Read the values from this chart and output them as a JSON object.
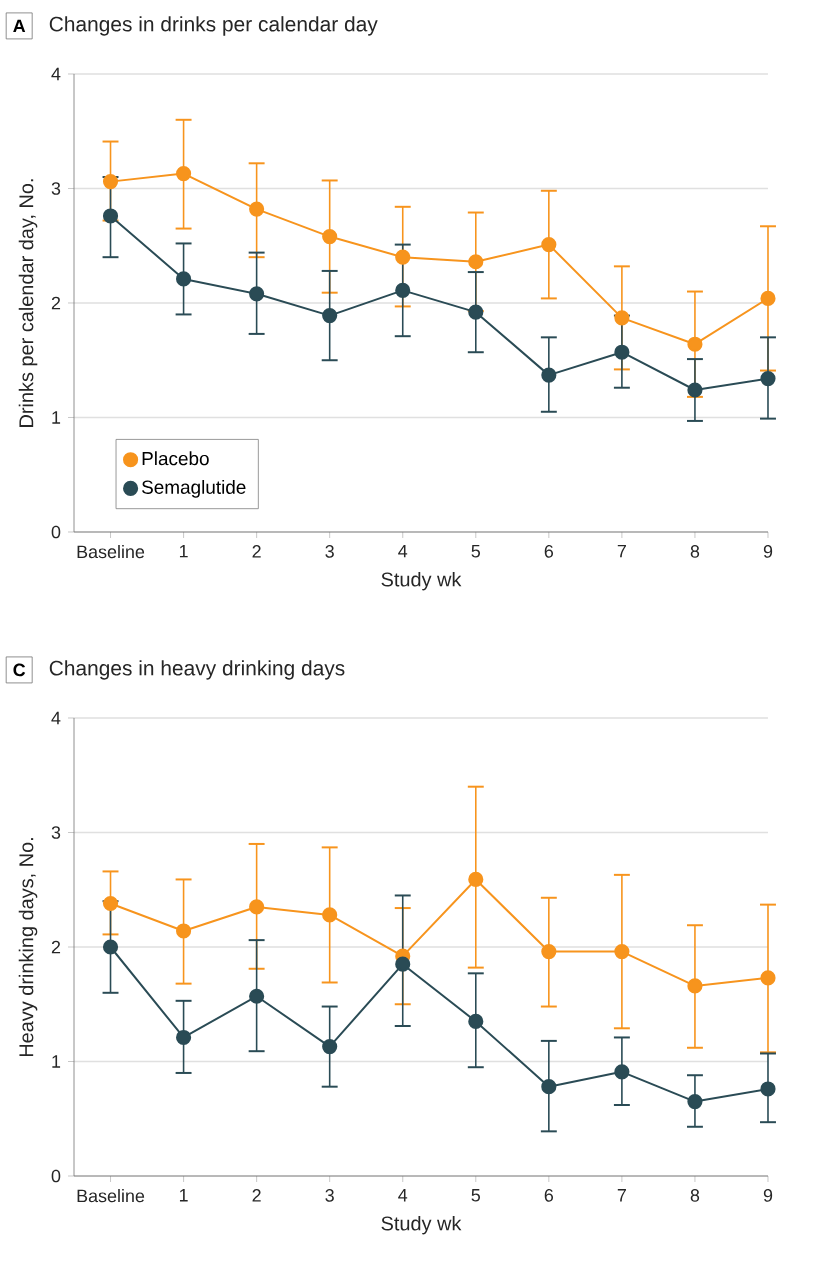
{
  "chart_data": [
    {
      "type": "line",
      "title": "Changes in drinks per calendar day",
      "annotations": [
        "A"
      ],
      "xlabel": "Study wk",
      "ylabel": "Drinks per calendar day, No.",
      "categories": [
        "Baseline",
        "1",
        "2",
        "3",
        "4",
        "5",
        "6",
        "7",
        "8",
        "9"
      ],
      "ylim": [
        0,
        4
      ],
      "yticks": [
        0,
        1,
        2,
        3,
        4
      ],
      "grid": "y",
      "legend": "bottom left",
      "marker": "circle",
      "series": [
        {
          "name": "Placebo",
          "color": "#f7941d",
          "values": [
            3.06,
            3.13,
            2.82,
            2.58,
            2.4,
            2.36,
            2.51,
            1.87,
            1.64,
            2.04
          ],
          "errors": [
            [
              2.72,
              3.41
            ],
            [
              2.65,
              3.6
            ],
            [
              2.4,
              3.22
            ],
            [
              2.09,
              3.07
            ],
            [
              1.97,
              2.84
            ],
            [
              1.93,
              2.79
            ],
            [
              2.04,
              2.98
            ],
            [
              1.42,
              2.32
            ],
            [
              1.18,
              2.1
            ],
            [
              1.41,
              2.67
            ]
          ]
        },
        {
          "name": "Semaglutide",
          "color": "#2a4b55",
          "values": [
            2.76,
            2.21,
            2.08,
            1.89,
            2.11,
            1.92,
            1.37,
            1.57,
            1.24,
            1.34
          ],
          "errors": [
            [
              2.4,
              3.1
            ],
            [
              1.9,
              2.52
            ],
            [
              1.73,
              2.44
            ],
            [
              1.5,
              2.28
            ],
            [
              1.71,
              2.51
            ],
            [
              1.57,
              2.27
            ],
            [
              1.05,
              1.7
            ],
            [
              1.26,
              1.89
            ],
            [
              0.97,
              1.51
            ],
            [
              0.99,
              1.7
            ]
          ]
        }
      ]
    },
    {
      "type": "line",
      "title": "Changes in heavy drinking days",
      "annotations": [
        "C"
      ],
      "xlabel": "Study wk",
      "ylabel": "Heavy drinking days, No.",
      "categories": [
        "Baseline",
        "1",
        "2",
        "3",
        "4",
        "5",
        "6",
        "7",
        "8",
        "9"
      ],
      "ylim": [
        0,
        4
      ],
      "yticks": [
        0,
        1,
        2,
        3,
        4
      ],
      "grid": "y",
      "legend": false,
      "marker": "circle",
      "series": [
        {
          "color": "#f7941d",
          "values": [
            2.38,
            2.14,
            2.35,
            2.28,
            1.92,
            2.59,
            1.96,
            1.96,
            1.66,
            1.73
          ],
          "errors": [
            [
              2.11,
              2.66
            ],
            [
              1.68,
              2.59
            ],
            [
              1.81,
              2.9
            ],
            [
              1.69,
              2.87
            ],
            [
              1.5,
              2.34
            ],
            [
              1.82,
              3.4
            ],
            [
              1.48,
              2.43
            ],
            [
              1.29,
              2.63
            ],
            [
              1.12,
              2.19
            ],
            [
              1.08,
              2.37
            ]
          ]
        },
        {
          "color": "#2a4b55",
          "values": [
            2.0,
            1.21,
            1.57,
            1.13,
            1.85,
            1.35,
            0.78,
            0.91,
            0.65,
            0.76
          ],
          "errors": [
            [
              1.6,
              2.4
            ],
            [
              0.9,
              1.53
            ],
            [
              1.09,
              2.06
            ],
            [
              0.78,
              1.48
            ],
            [
              1.31,
              2.45
            ],
            [
              0.95,
              1.77
            ],
            [
              0.39,
              1.18
            ],
            [
              0.62,
              1.21
            ],
            [
              0.43,
              0.88
            ],
            [
              0.47,
              1.07
            ]
          ]
        }
      ]
    }
  ]
}
